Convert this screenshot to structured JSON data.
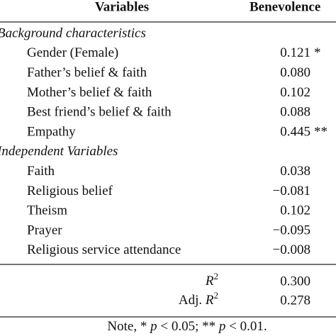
{
  "table": {
    "header": [
      "Variables",
      "Benevolence"
    ],
    "sections": [
      {
        "title": "Background characteristics",
        "rows": [
          {
            "label": "Gender (Female)",
            "value": "0.121",
            "sig": "*"
          },
          {
            "label": "Father’s belief & faith",
            "value": "0.080"
          },
          {
            "label": "Mother’s belief & faith",
            "value": "0.102"
          },
          {
            "label": "Best friend’s belief & faith",
            "value": "0.088"
          },
          {
            "label": "Empathy",
            "value": "0.445",
            "sig": "**"
          }
        ]
      },
      {
        "title": "Independent Variables",
        "rows": [
          {
            "label": "Faith",
            "value": "0.038"
          },
          {
            "label": "Religious belief",
            "value": "−0.081"
          },
          {
            "label": "Theism",
            "value": "0.102"
          },
          {
            "label": "Prayer",
            "value": "−0.095"
          },
          {
            "label": "Religious service attendance",
            "value": "−0.008"
          }
        ]
      }
    ],
    "stats": [
      {
        "var": "R",
        "sup": "2",
        "value": "0.300"
      },
      {
        "prefix": "Adj. ",
        "var": "R",
        "sup": "2",
        "value": "0.278"
      }
    ],
    "note": [
      "Note, * ",
      "p",
      " < 0.05; ** ",
      "p",
      " < 0.01."
    ]
  }
}
